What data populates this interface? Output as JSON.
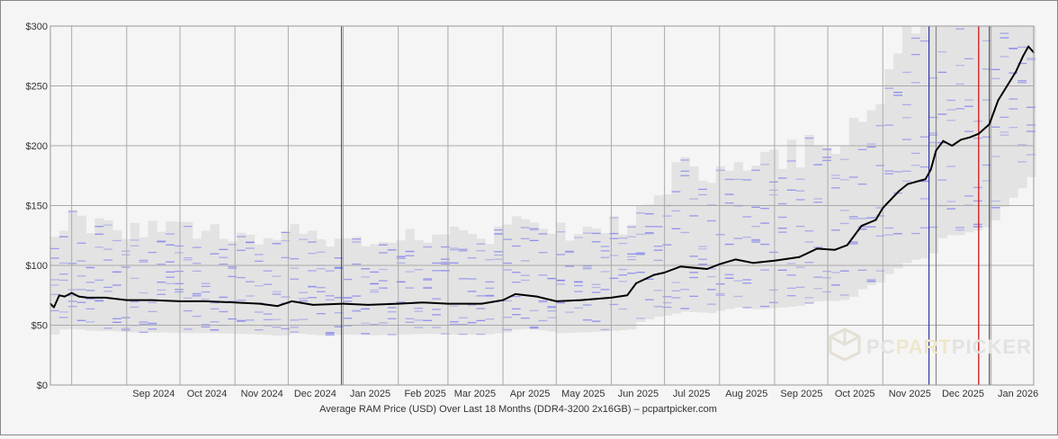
{
  "chart_data": {
    "type": "line",
    "title": "",
    "xlabel": "Average RAM Price (USD) Over Last 18 Months (DDR4-3200 2x16GB) – pcpartpicker.com",
    "ylabel": "",
    "ylim": [
      0,
      300
    ],
    "y_ticks": [
      {
        "value": 0,
        "label": "$0"
      },
      {
        "value": 50,
        "label": "$50"
      },
      {
        "value": 100,
        "label": "$100"
      },
      {
        "value": 150,
        "label": "$150"
      },
      {
        "value": 200,
        "label": "$200"
      },
      {
        "value": 250,
        "label": "$250"
      },
      {
        "value": 300,
        "label": "$300"
      }
    ],
    "xlim": [
      "2024-07-20",
      "2026-01-25"
    ],
    "x_ticks": [
      {
        "date": "2024-08-01",
        "label": ""
      },
      {
        "date": "2024-09-01",
        "label": "Sep 2024"
      },
      {
        "date": "2024-10-01",
        "label": "Oct 2024"
      },
      {
        "date": "2024-11-01",
        "label": "Nov 2024"
      },
      {
        "date": "2024-12-01",
        "label": "Dec 2024"
      },
      {
        "date": "2025-01-01",
        "label": "Jan 2025"
      },
      {
        "date": "2025-02-01",
        "label": "Feb 2025"
      },
      {
        "date": "2025-03-01",
        "label": "Mar 2025"
      },
      {
        "date": "2025-04-01",
        "label": "Apr 2025"
      },
      {
        "date": "2025-05-01",
        "label": "May 2025"
      },
      {
        "date": "2025-06-01",
        "label": "Jun 2025"
      },
      {
        "date": "2025-07-01",
        "label": "Jul 2025"
      },
      {
        "date": "2025-08-01",
        "label": "Aug 2025"
      },
      {
        "date": "2025-09-01",
        "label": "Sep 2025"
      },
      {
        "date": "2025-10-01",
        "label": "Oct 2025"
      },
      {
        "date": "2025-11-01",
        "label": "Nov 2025"
      },
      {
        "date": "2025-12-01",
        "label": "Dec 2025"
      },
      {
        "date": "2026-01-01",
        "label": "Jan 2026"
      }
    ],
    "grid": true,
    "event_lines": [
      {
        "date": "2024-12-31",
        "color": "#555555"
      },
      {
        "date": "2025-11-27",
        "color": "#3333aa"
      },
      {
        "date": "2025-12-01",
        "color": "#888888"
      },
      {
        "date": "2025-12-25",
        "color": "#cc0000"
      },
      {
        "date": "2025-12-31",
        "color": "#555555"
      }
    ],
    "series": [
      {
        "points": [
          [
            "2024-07-20",
            68
          ],
          [
            "2024-07-22",
            65
          ],
          [
            "2024-07-25",
            75
          ],
          [
            "2024-07-28",
            74
          ],
          [
            "2024-08-01",
            77
          ],
          [
            "2024-08-05",
            74
          ],
          [
            "2024-08-10",
            73
          ],
          [
            "2024-08-20",
            73
          ],
          [
            "2024-09-01",
            71
          ],
          [
            "2024-09-15",
            71
          ],
          [
            "2024-10-01",
            70
          ],
          [
            "2024-10-15",
            70
          ],
          [
            "2024-11-01",
            69
          ],
          [
            "2024-11-15",
            68
          ],
          [
            "2024-11-25",
            66
          ],
          [
            "2024-12-03",
            70
          ],
          [
            "2024-12-15",
            67
          ],
          [
            "2025-01-01",
            68
          ],
          [
            "2025-01-15",
            67
          ],
          [
            "2025-02-01",
            68
          ],
          [
            "2025-02-15",
            69
          ],
          [
            "2025-03-01",
            68
          ],
          [
            "2025-03-20",
            68
          ],
          [
            "2025-04-01",
            71
          ],
          [
            "2025-04-08",
            76
          ],
          [
            "2025-04-20",
            74
          ],
          [
            "2025-05-01",
            70
          ],
          [
            "2025-05-15",
            71
          ],
          [
            "2025-06-01",
            73
          ],
          [
            "2025-06-10",
            75
          ],
          [
            "2025-06-15",
            85
          ],
          [
            "2025-06-25",
            92
          ],
          [
            "2025-07-01",
            94
          ],
          [
            "2025-07-10",
            99
          ],
          [
            "2025-07-25",
            97
          ],
          [
            "2025-08-01",
            101
          ],
          [
            "2025-08-10",
            105
          ],
          [
            "2025-08-20",
            102
          ],
          [
            "2025-09-01",
            104
          ],
          [
            "2025-09-15",
            107
          ],
          [
            "2025-09-25",
            114
          ],
          [
            "2025-10-05",
            113
          ],
          [
            "2025-10-12",
            117
          ],
          [
            "2025-10-20",
            133
          ],
          [
            "2025-10-28",
            138
          ],
          [
            "2025-11-01",
            148
          ],
          [
            "2025-11-10",
            162
          ],
          [
            "2025-11-15",
            168
          ],
          [
            "2025-11-20",
            170
          ],
          [
            "2025-11-25",
            172
          ],
          [
            "2025-11-28",
            180
          ],
          [
            "2025-12-01",
            196
          ],
          [
            "2025-12-05",
            204
          ],
          [
            "2025-12-10",
            200
          ],
          [
            "2025-12-15",
            205
          ],
          [
            "2025-12-20",
            207
          ],
          [
            "2025-12-25",
            210
          ],
          [
            "2025-12-31",
            218
          ],
          [
            "2026-01-05",
            238
          ],
          [
            "2026-01-10",
            250
          ],
          [
            "2026-01-15",
            262
          ],
          [
            "2026-01-19",
            275
          ],
          [
            "2026-01-22",
            283
          ],
          [
            "2026-01-25",
            278
          ]
        ]
      }
    ]
  },
  "watermark": {
    "part1": "PC",
    "part2": "PART",
    "part3": "PICKER"
  }
}
